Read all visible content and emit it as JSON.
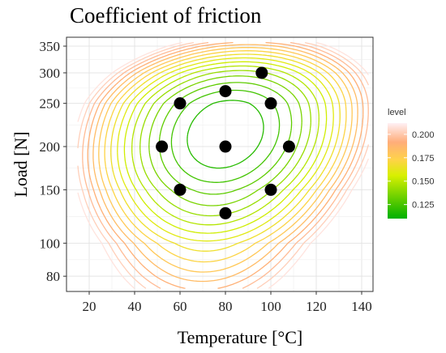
{
  "chart_data": {
    "type": "contour",
    "title": "Coefficient of friction",
    "xlabel": "Temperature [°C]",
    "ylabel": "Load [N]",
    "xlim": [
      10,
      145
    ],
    "ylim": [
      70,
      370
    ],
    "xticks": [
      20,
      40,
      60,
      80,
      100,
      120,
      140
    ],
    "yticks": [
      80,
      100,
      150,
      200,
      250,
      300,
      350
    ],
    "grid": true,
    "legend": {
      "title": "level",
      "placement": "right",
      "ticks": [
        0.125,
        0.15,
        0.175,
        0.2
      ],
      "tick_labels": [
        "0.125",
        "0.150",
        "0.175",
        "0.200"
      ],
      "range": [
        0.11,
        0.212
      ],
      "colors": [
        "#00b000",
        "#ffff00",
        "#ffb060",
        "#ffe8f0"
      ]
    },
    "contour_levels": [
      0.112,
      0.118,
      0.124,
      0.13,
      0.136,
      0.142,
      0.148,
      0.154,
      0.16,
      0.166,
      0.172,
      0.178,
      0.184,
      0.19,
      0.196,
      0.202,
      0.208
    ],
    "points": [
      {
        "x": 52,
        "y": 200
      },
      {
        "x": 60,
        "y": 150
      },
      {
        "x": 60,
        "y": 250
      },
      {
        "x": 80,
        "y": 128
      },
      {
        "x": 80,
        "y": 200
      },
      {
        "x": 80,
        "y": 270
      },
      {
        "x": 96,
        "y": 300
      },
      {
        "x": 100,
        "y": 150
      },
      {
        "x": 100,
        "y": 250
      },
      {
        "x": 108,
        "y": 200
      }
    ]
  }
}
